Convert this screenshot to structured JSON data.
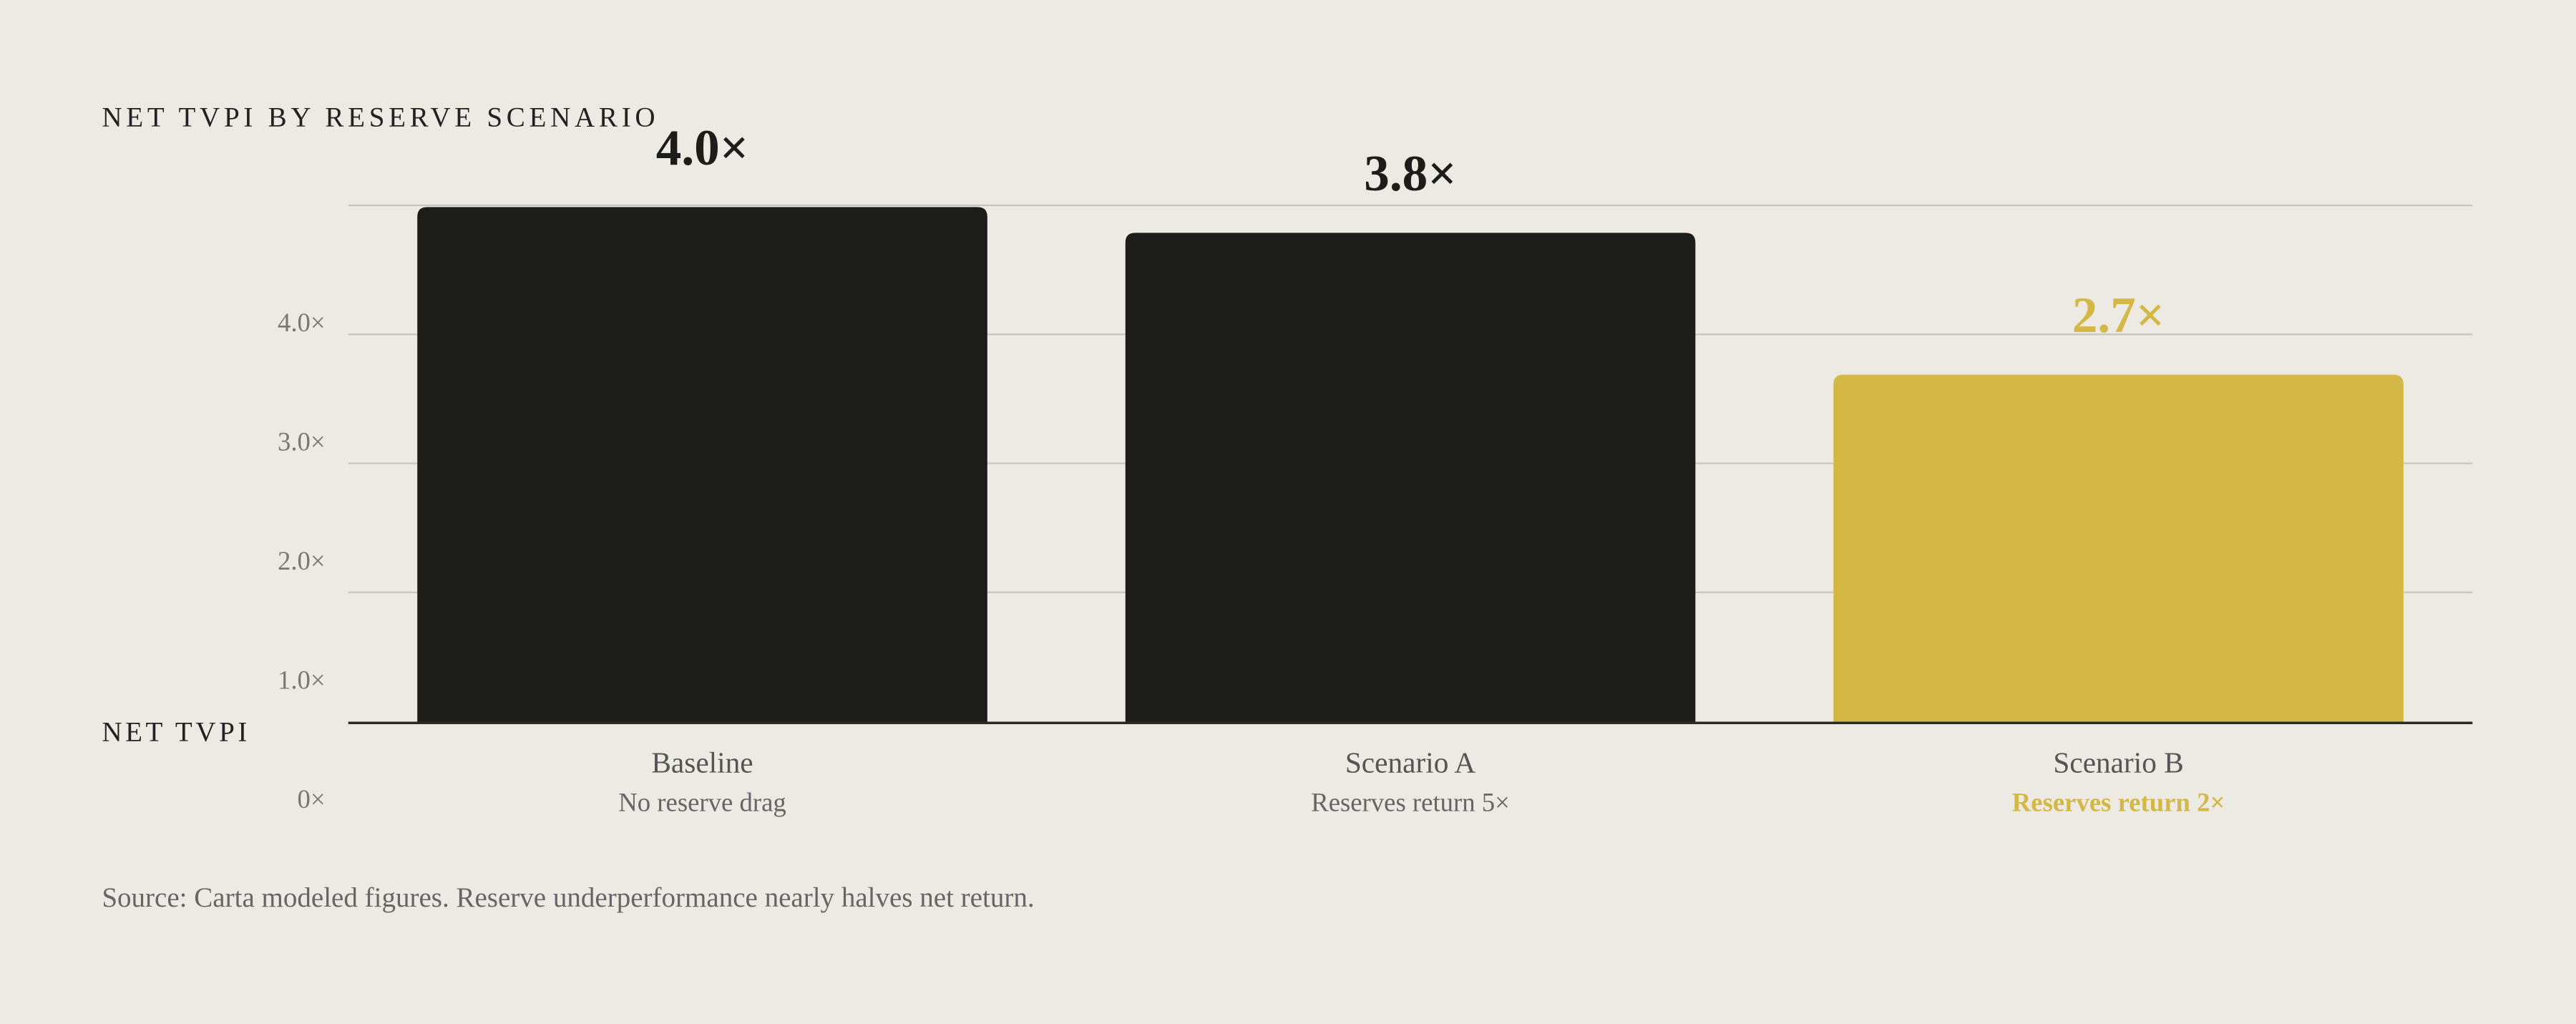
{
  "chart_data": {
    "type": "bar",
    "title": "NET TVPI BY RESERVE SCENARIO",
    "y_label": "NET TVPI",
    "categories": [
      "Baseline",
      "Scenario A",
      "Scenario B"
    ],
    "subcategories": [
      "No reserve drag",
      "Reserves return 5×",
      "Reserves return 2×"
    ],
    "values": [
      4.0,
      3.8,
      2.7
    ],
    "value_labels": [
      "4.0×",
      "3.8×",
      "2.7×"
    ],
    "colors": [
      "#1c1c1a",
      "#1c1c1a",
      "#d4b846"
    ],
    "ylim": [
      0,
      4
    ],
    "yticks": [
      {
        "value": 4,
        "label": "4.0×"
      },
      {
        "value": 3,
        "label": "3.0×"
      },
      {
        "value": 2,
        "label": "2.0×"
      },
      {
        "value": 1,
        "label": "1.0×"
      },
      {
        "value": 0,
        "label": "0×"
      }
    ],
    "grid": true,
    "source": "Source: Carta modeled figures. Reserve underperformance nearly halves net return."
  }
}
